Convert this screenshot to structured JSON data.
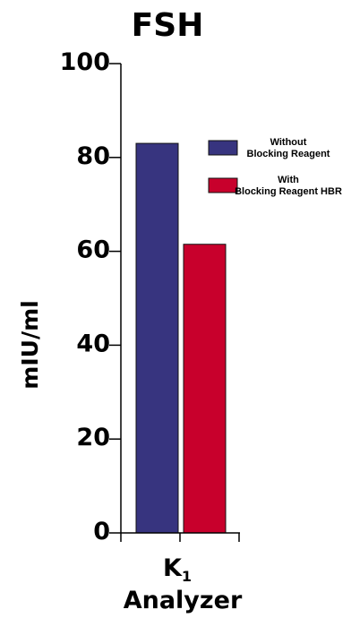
{
  "chart_data": {
    "type": "bar",
    "title": "FSH",
    "ylabel": "mIU/ml",
    "xlabel": "Analyzer",
    "categories": [
      "K1"
    ],
    "category_parts": [
      {
        "main": "K",
        "sub": "1"
      }
    ],
    "ylim": [
      0,
      100
    ],
    "yticks": [
      "0",
      "20",
      "40",
      "60",
      "80",
      "100"
    ],
    "grid": false,
    "legend_position": "top-right",
    "series": [
      {
        "name_line1": "Without",
        "name_line2": "Blocking Reagent",
        "values": [
          83
        ],
        "color": "#37347f"
      },
      {
        "name_line1": "With",
        "name_line2": "Blocking Reagent HBR",
        "values": [
          61.5
        ],
        "color": "#c8002c"
      }
    ]
  }
}
